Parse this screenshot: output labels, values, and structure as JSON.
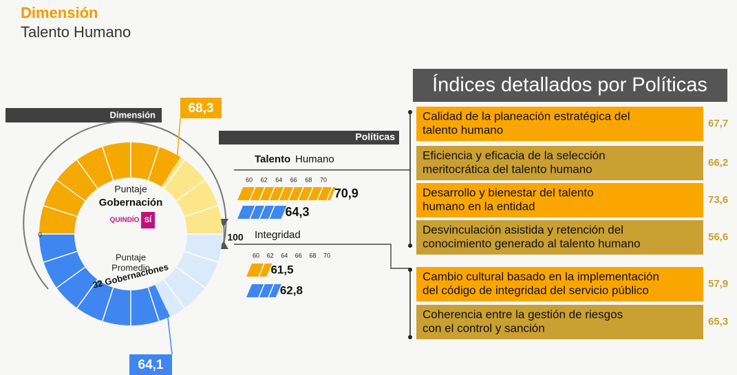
{
  "header": {
    "title": "Dimensión",
    "subtitle": "Talento Humano"
  },
  "gauge": {
    "label": "Dimensión",
    "min": 0,
    "max": 100,
    "gobernacion": {
      "value": 68.3,
      "label": "68,3",
      "caption": [
        "Puntaje",
        "Gobernación"
      ]
    },
    "promedio": {
      "value": 64.1,
      "label": "64,1",
      "caption": [
        "Puntaje",
        "Promedio",
        "32 Gobernaciones"
      ]
    },
    "logo": [
      "QUINDÍO",
      "SÍ"
    ]
  },
  "politicas": {
    "label": "Políticas",
    "groups": [
      {
        "name_bold": "Talento",
        "name": "Humano",
        "scale": [
          60,
          62,
          64,
          66,
          68,
          70
        ],
        "gobernacion": {
          "value": 70.9,
          "label": "70,9"
        },
        "promedio": {
          "value": 64.3,
          "label": "64,3"
        }
      },
      {
        "name": "Integridad",
        "scale": [
          60,
          62,
          64,
          66,
          68,
          70
        ],
        "gobernacion": {
          "value": 61.5,
          "label": "61,5"
        },
        "promedio": {
          "value": 62.8,
          "label": "62,8"
        }
      }
    ]
  },
  "indices": {
    "title": "Índices detallados por Políticas",
    "items": [
      {
        "lines": [
          "Calidad de la planeación estratégica del",
          "talento humano"
        ],
        "value": 67.7,
        "label": "67,7"
      },
      {
        "lines": [
          "Eficiencia y eficacia de la selección",
          "meritocrática del talento humano"
        ],
        "value": 66.2,
        "label": "66,2"
      },
      {
        "lines": [
          "Desarrollo y bienestar del talento",
          "humano en la entidad"
        ],
        "value": 73.6,
        "label": "73,6"
      },
      {
        "lines": [
          "Desvinculación asistida y retención del",
          "conocimiento generado al talento humano"
        ],
        "value": 56.6,
        "label": "56,6"
      },
      {
        "lines": [
          "Cambio cultural basado en la implementación",
          "del código de integridad del servicio público"
        ],
        "value": 57.9,
        "label": "57,9"
      },
      {
        "lines": [
          "Coherencia entre la gestión de riesgos",
          "con el control y sanción"
        ],
        "value": 65.3,
        "label": "65,3"
      }
    ]
  }
}
